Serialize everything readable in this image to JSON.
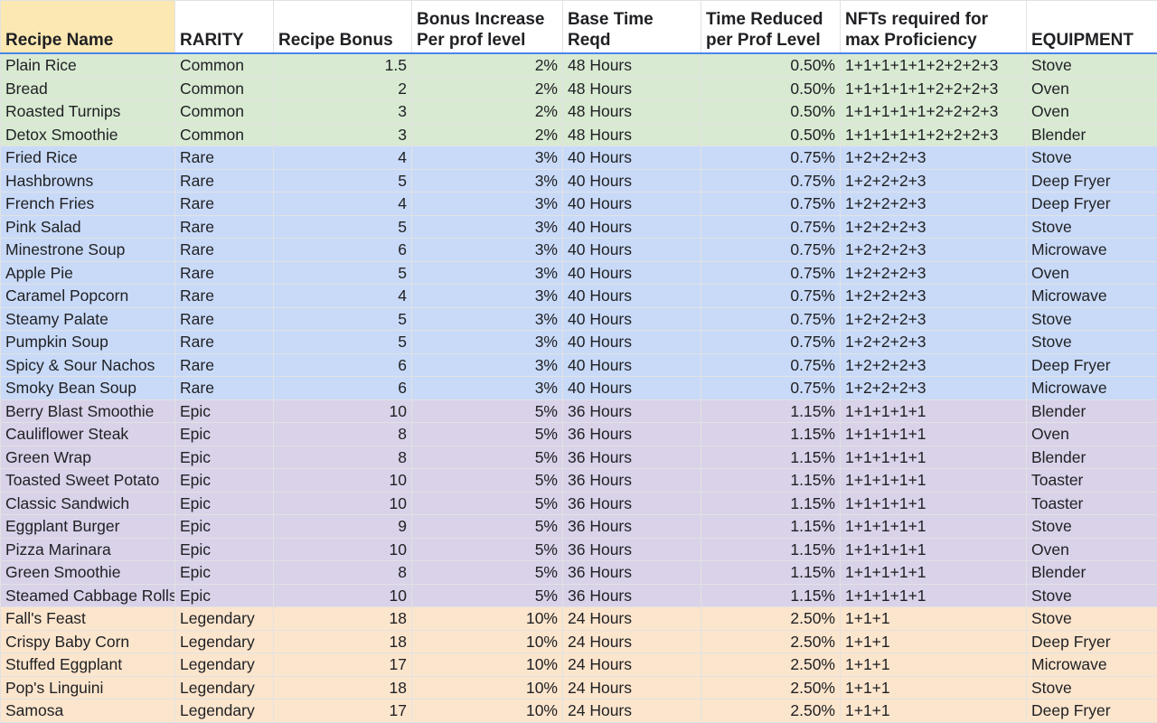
{
  "colors": {
    "common": "#d9ead3",
    "rare": "#c9daf8",
    "epic": "#d9d2e9",
    "legendary": "#fce5cd",
    "header_first": "#fce8b2",
    "header_border": "#4a86e8"
  },
  "headers": [
    "Recipe Name",
    "RARITY",
    "Recipe Bonus",
    "Bonus Increase Per prof level",
    "Base Time Reqd",
    "Time Reduced per Prof Level",
    "NFTs required for max Proficiency",
    "EQUIPMENT"
  ],
  "rows": [
    {
      "rarity_class": "common",
      "name": "Plain Rice",
      "rarity": "Common",
      "bonus": "1.5",
      "bonus_inc": "2%",
      "base_time": "48 Hours",
      "time_red": "0.50%",
      "nfts": "1+1+1+1+1+2+2+2+3",
      "equipment": "Stove"
    },
    {
      "rarity_class": "common",
      "name": "Bread",
      "rarity": "Common",
      "bonus": "2",
      "bonus_inc": "2%",
      "base_time": "48 Hours",
      "time_red": "0.50%",
      "nfts": "1+1+1+1+1+2+2+2+3",
      "equipment": "Oven"
    },
    {
      "rarity_class": "common",
      "name": "Roasted Turnips",
      "rarity": "Common",
      "bonus": "3",
      "bonus_inc": "2%",
      "base_time": "48 Hours",
      "time_red": "0.50%",
      "nfts": "1+1+1+1+1+2+2+2+3",
      "equipment": "Oven"
    },
    {
      "rarity_class": "common",
      "name": "Detox Smoothie",
      "rarity": "Common",
      "bonus": "3",
      "bonus_inc": "2%",
      "base_time": "48 Hours",
      "time_red": "0.50%",
      "nfts": "1+1+1+1+1+2+2+2+3",
      "equipment": "Blender"
    },
    {
      "rarity_class": "rare",
      "name": "Fried Rice",
      "rarity": "Rare",
      "bonus": "4",
      "bonus_inc": "3%",
      "base_time": "40 Hours",
      "time_red": "0.75%",
      "nfts": "1+2+2+2+3",
      "equipment": "Stove"
    },
    {
      "rarity_class": "rare",
      "name": "Hashbrowns",
      "rarity": "Rare",
      "bonus": "5",
      "bonus_inc": "3%",
      "base_time": "40 Hours",
      "time_red": "0.75%",
      "nfts": "1+2+2+2+3",
      "equipment": "Deep Fryer"
    },
    {
      "rarity_class": "rare",
      "name": "French Fries",
      "rarity": "Rare",
      "bonus": "4",
      "bonus_inc": "3%",
      "base_time": "40 Hours",
      "time_red": "0.75%",
      "nfts": "1+2+2+2+3",
      "equipment": "Deep Fryer"
    },
    {
      "rarity_class": "rare",
      "name": "Pink Salad",
      "rarity": "Rare",
      "bonus": "5",
      "bonus_inc": "3%",
      "base_time": "40 Hours",
      "time_red": "0.75%",
      "nfts": "1+2+2+2+3",
      "equipment": "Stove"
    },
    {
      "rarity_class": "rare",
      "name": "Minestrone Soup",
      "rarity": "Rare",
      "bonus": "6",
      "bonus_inc": "3%",
      "base_time": "40 Hours",
      "time_red": "0.75%",
      "nfts": "1+2+2+2+3",
      "equipment": "Microwave"
    },
    {
      "rarity_class": "rare",
      "name": "Apple Pie",
      "rarity": "Rare",
      "bonus": "5",
      "bonus_inc": "3%",
      "base_time": "40 Hours",
      "time_red": "0.75%",
      "nfts": "1+2+2+2+3",
      "equipment": "Oven"
    },
    {
      "rarity_class": "rare",
      "name": "Caramel Popcorn",
      "rarity": "Rare",
      "bonus": "4",
      "bonus_inc": "3%",
      "base_time": "40 Hours",
      "time_red": "0.75%",
      "nfts": "1+2+2+2+3",
      "equipment": "Microwave"
    },
    {
      "rarity_class": "rare",
      "name": "Steamy Palate",
      "rarity": "Rare",
      "bonus": "5",
      "bonus_inc": "3%",
      "base_time": "40 Hours",
      "time_red": "0.75%",
      "nfts": "1+2+2+2+3",
      "equipment": "Stove"
    },
    {
      "rarity_class": "rare",
      "name": "Pumpkin Soup",
      "rarity": "Rare",
      "bonus": "5",
      "bonus_inc": "3%",
      "base_time": "40 Hours",
      "time_red": "0.75%",
      "nfts": "1+2+2+2+3",
      "equipment": "Stove"
    },
    {
      "rarity_class": "rare",
      "name": "Spicy & Sour Nachos",
      "rarity": "Rare",
      "bonus": "6",
      "bonus_inc": "3%",
      "base_time": "40 Hours",
      "time_red": "0.75%",
      "nfts": "1+2+2+2+3",
      "equipment": "Deep Fryer"
    },
    {
      "rarity_class": "rare",
      "name": "Smoky Bean Soup",
      "rarity": "Rare",
      "bonus": "6",
      "bonus_inc": "3%",
      "base_time": "40 Hours",
      "time_red": "0.75%",
      "nfts": "1+2+2+2+3",
      "equipment": "Microwave"
    },
    {
      "rarity_class": "epic",
      "name": "Berry Blast Smoothie",
      "rarity": "Epic",
      "bonus": "10",
      "bonus_inc": "5%",
      "base_time": "36 Hours",
      "time_red": "1.15%",
      "nfts": "1+1+1+1+1",
      "equipment": "Blender"
    },
    {
      "rarity_class": "epic",
      "name": "Cauliflower Steak",
      "rarity": "Epic",
      "bonus": "8",
      "bonus_inc": "5%",
      "base_time": "36 Hours",
      "time_red": "1.15%",
      "nfts": "1+1+1+1+1",
      "equipment": "Oven"
    },
    {
      "rarity_class": "epic",
      "name": "Green Wrap",
      "rarity": "Epic",
      "bonus": "8",
      "bonus_inc": "5%",
      "base_time": "36 Hours",
      "time_red": "1.15%",
      "nfts": "1+1+1+1+1",
      "equipment": "Blender"
    },
    {
      "rarity_class": "epic",
      "name": "Toasted Sweet Potato",
      "rarity": "Epic",
      "bonus": "10",
      "bonus_inc": "5%",
      "base_time": "36 Hours",
      "time_red": "1.15%",
      "nfts": "1+1+1+1+1",
      "equipment": "Toaster"
    },
    {
      "rarity_class": "epic",
      "name": "Classic Sandwich",
      "rarity": "Epic",
      "bonus": "10",
      "bonus_inc": "5%",
      "base_time": "36 Hours",
      "time_red": "1.15%",
      "nfts": "1+1+1+1+1",
      "equipment": "Toaster"
    },
    {
      "rarity_class": "epic",
      "name": "Eggplant Burger",
      "rarity": "Epic",
      "bonus": "9",
      "bonus_inc": "5%",
      "base_time": "36 Hours",
      "time_red": "1.15%",
      "nfts": "1+1+1+1+1",
      "equipment": "Stove"
    },
    {
      "rarity_class": "epic",
      "name": "Pizza Marinara",
      "rarity": "Epic",
      "bonus": "10",
      "bonus_inc": "5%",
      "base_time": "36 Hours",
      "time_red": "1.15%",
      "nfts": "1+1+1+1+1",
      "equipment": "Oven"
    },
    {
      "rarity_class": "epic",
      "name": "Green Smoothie",
      "rarity": "Epic",
      "bonus": "8",
      "bonus_inc": "5%",
      "base_time": "36 Hours",
      "time_red": "1.15%",
      "nfts": "1+1+1+1+1",
      "equipment": "Blender"
    },
    {
      "rarity_class": "epic",
      "name": "Steamed Cabbage Rolls",
      "rarity": "Epic",
      "bonus": "10",
      "bonus_inc": "5%",
      "base_time": "36 Hours",
      "time_red": "1.15%",
      "nfts": "1+1+1+1+1",
      "equipment": "Stove"
    },
    {
      "rarity_class": "legendary",
      "name": "Fall's Feast",
      "rarity": "Legendary",
      "bonus": "18",
      "bonus_inc": "10%",
      "base_time": "24 Hours",
      "time_red": "2.50%",
      "nfts": "1+1+1",
      "equipment": "Stove"
    },
    {
      "rarity_class": "legendary",
      "name": "Crispy Baby Corn",
      "rarity": "Legendary",
      "bonus": "18",
      "bonus_inc": "10%",
      "base_time": "24 Hours",
      "time_red": "2.50%",
      "nfts": "1+1+1",
      "equipment": "Deep Fryer"
    },
    {
      "rarity_class": "legendary",
      "name": "Stuffed Eggplant",
      "rarity": "Legendary",
      "bonus": "17",
      "bonus_inc": "10%",
      "base_time": "24 Hours",
      "time_red": "2.50%",
      "nfts": "1+1+1",
      "equipment": "Microwave"
    },
    {
      "rarity_class": "legendary",
      "name": "Pop's Linguini",
      "rarity": "Legendary",
      "bonus": "18",
      "bonus_inc": "10%",
      "base_time": "24 Hours",
      "time_red": "2.50%",
      "nfts": "1+1+1",
      "equipment": "Stove"
    },
    {
      "rarity_class": "legendary",
      "name": "Samosa",
      "rarity": "Legendary",
      "bonus": "17",
      "bonus_inc": "10%",
      "base_time": "24 Hours",
      "time_red": "2.50%",
      "nfts": "1+1+1",
      "equipment": "Deep Fryer"
    }
  ]
}
